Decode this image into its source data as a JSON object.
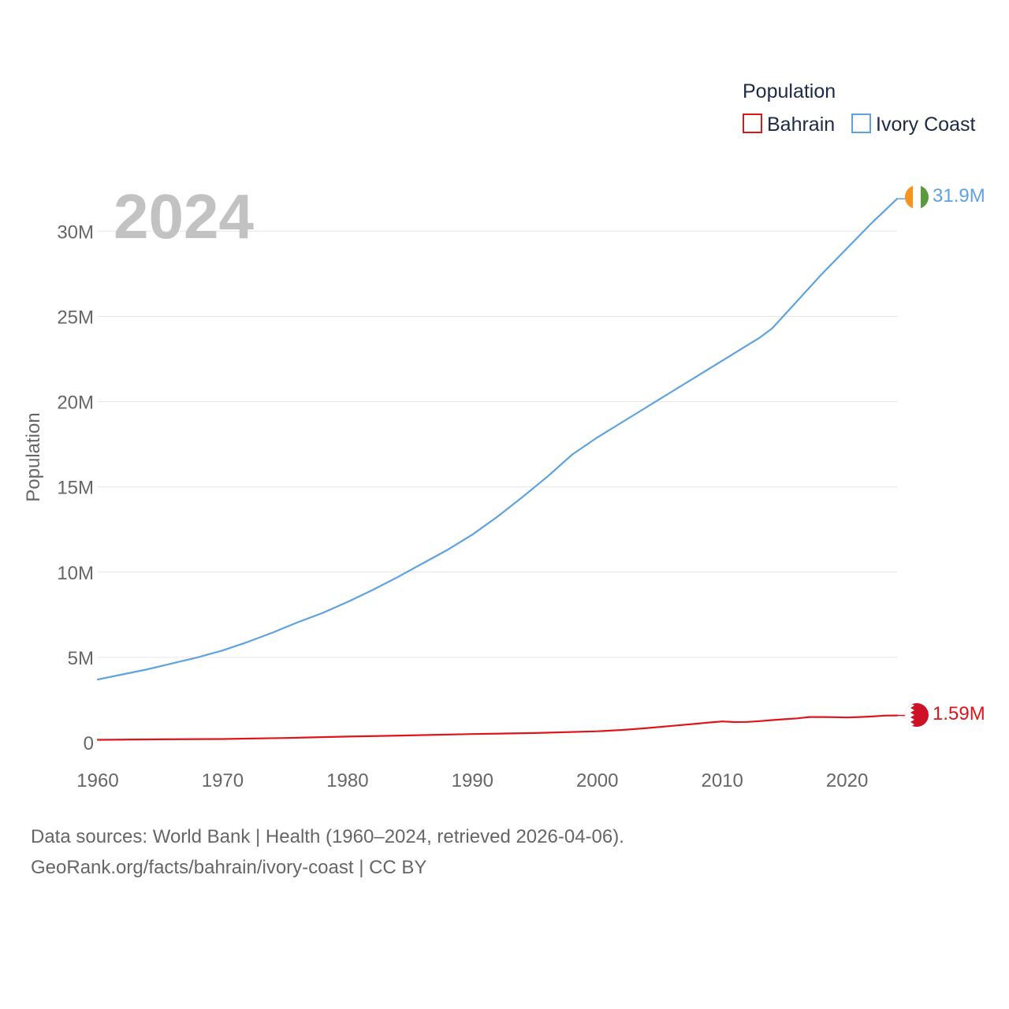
{
  "chart_data": {
    "type": "line",
    "current_year_label": "2024",
    "ylabel": "Population",
    "ylim": [
      0,
      32000000
    ],
    "xlim": [
      1960,
      2024
    ],
    "x_ticks": [
      1960,
      1970,
      1980,
      1990,
      2000,
      2010,
      2020
    ],
    "x_tick_labels": [
      "1960",
      "1970",
      "1980",
      "1990",
      "2000",
      "2010",
      "2020"
    ],
    "y_ticks": [
      0,
      5000000,
      10000000,
      15000000,
      20000000,
      25000000,
      30000000
    ],
    "y_tick_labels": [
      "0",
      "5M",
      "10M",
      "15M",
      "20M",
      "25M",
      "30M"
    ],
    "legend": {
      "title": "Population",
      "placement": "top-right",
      "entries": [
        "Bahrain",
        "Ivory Coast"
      ]
    },
    "series": [
      {
        "name": "Ivory Coast",
        "color": "#5fa2e0",
        "end_label": "31.9M",
        "flag": "ivory-coast-flag",
        "x": [
          1960,
          1962,
          1964,
          1966,
          1968,
          1970,
          1972,
          1974,
          1976,
          1978,
          1980,
          1982,
          1984,
          1986,
          1988,
          1990,
          1992,
          1994,
          1996,
          1998,
          2000,
          2002,
          2004,
          2006,
          2008,
          2010,
          2012,
          2013,
          2014,
          2016,
          2018,
          2020,
          2022,
          2023,
          2024
        ],
        "values": [
          3700000,
          4000000,
          4300000,
          4650000,
          5000000,
          5400000,
          5900000,
          6450000,
          7050000,
          7600000,
          8250000,
          8950000,
          9700000,
          10500000,
          11300000,
          12200000,
          13250000,
          14400000,
          15600000,
          16900000,
          17900000,
          18800000,
          19700000,
          20600000,
          21500000,
          22400000,
          23300000,
          23750000,
          24300000,
          25900000,
          27500000,
          29000000,
          30500000,
          31200000,
          31900000
        ]
      },
      {
        "name": "Bahrain",
        "color": "#e0141b",
        "end_label": "1.59M",
        "flag": "bahrain-flag",
        "x": [
          1960,
          1965,
          1970,
          1975,
          1980,
          1985,
          1990,
          1995,
          2000,
          2002,
          2004,
          2006,
          2008,
          2009,
          2010,
          2011,
          2012,
          2013,
          2014,
          2015,
          2016,
          2017,
          2018,
          2019,
          2020,
          2021,
          2022,
          2023,
          2024
        ],
        "values": [
          160000,
          190000,
          210000,
          270000,
          350000,
          420000,
          500000,
          560000,
          660000,
          740000,
          850000,
          980000,
          1110000,
          1180000,
          1240000,
          1200000,
          1210000,
          1260000,
          1320000,
          1370000,
          1420000,
          1500000,
          1500000,
          1490000,
          1470000,
          1500000,
          1530000,
          1580000,
          1590000
        ]
      }
    ]
  },
  "source_lines": [
    "Data sources: World Bank | Health (1960–2024, retrieved 2026-04-06).",
    "GeoRank.org/facts/bahrain/ivory-coast | CC BY"
  ]
}
